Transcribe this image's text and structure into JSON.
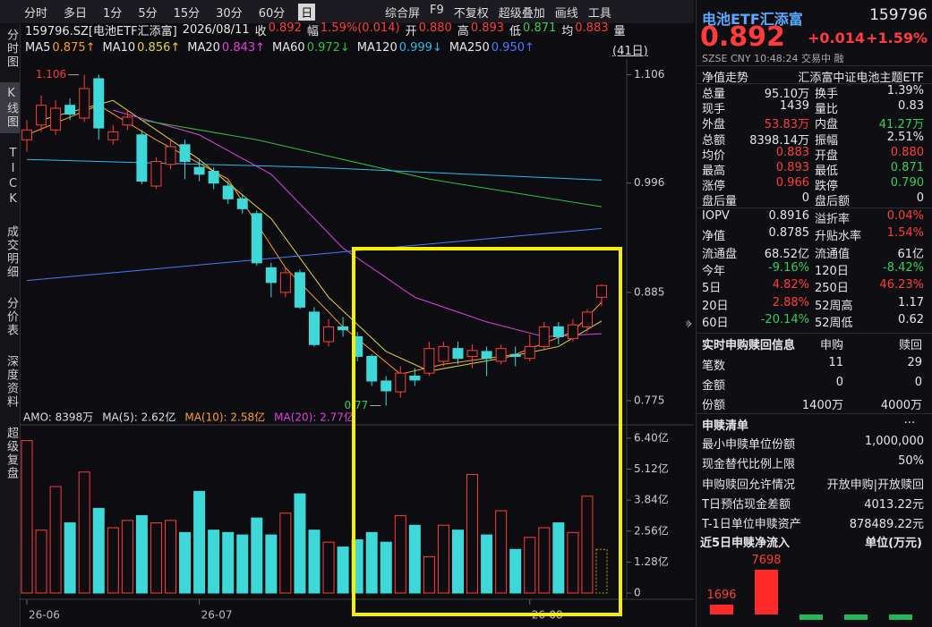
{
  "toolbar": {
    "tabs": [
      "分时",
      "多日",
      "1分",
      "5分",
      "15分",
      "30分",
      "60分",
      "日"
    ],
    "tools": [
      "综合屏",
      "F9",
      "不复权",
      "超级叠加",
      "画线",
      "工具"
    ]
  },
  "sidebar": [
    "分时图",
    "K线图",
    "TICK",
    "成交明细",
    "分价表",
    "深度资料",
    "超级复盘"
  ],
  "info": {
    "symbol": "159796.SZ[电池ETF汇添富]",
    "date": "2026/08/11",
    "quote": [
      {
        "label": "收",
        "value": "0.892",
        "tone": "u"
      },
      {
        "label": "幅",
        "value": "1.59%(0.014)",
        "tone": "u"
      },
      {
        "label": "开",
        "value": "0.880",
        "tone": "u"
      },
      {
        "label": "高",
        "value": "0.893",
        "tone": "u"
      },
      {
        "label": "低",
        "value": "0.871",
        "tone": "d"
      },
      {
        "label": "均",
        "value": "0.883",
        "tone": "u"
      },
      {
        "label": "量",
        "value": null,
        "tone": "n"
      }
    ]
  },
  "ma_bar": {
    "items": [
      {
        "name": "MA5",
        "value": "0.875↑",
        "color": "#ff9a2e"
      },
      {
        "name": "MA10",
        "value": "0.856↑",
        "color": "#e6d23c"
      },
      {
        "name": "MA20",
        "value": "0.843↑",
        "color": "#e040e0"
      },
      {
        "name": "MA60",
        "value": "0.972↓",
        "color": "#30c040"
      },
      {
        "name": "MA120",
        "value": "0.999↓",
        "color": "#30b8e8"
      },
      {
        "name": "MA250",
        "value": "0.950↑",
        "color": "#4a78ff"
      }
    ],
    "range": "(41日)"
  },
  "kline": {
    "up_color": "#ff3b3b",
    "down_color": "#3fd8d8",
    "current_bar_color": "#c8a000",
    "ylim": [
      0.755,
      1.122
    ],
    "yticks": [
      1.106,
      0.996,
      0.885,
      0.775
    ],
    "high_label": "1.106",
    "low_label": "0.77",
    "ohlc": [
      [
        1.04,
        1.06,
        1.028,
        1.05
      ],
      [
        1.055,
        1.085,
        1.048,
        1.075
      ],
      [
        1.05,
        1.08,
        1.045,
        1.072
      ],
      [
        1.075,
        1.082,
        1.06,
        1.066
      ],
      [
        1.062,
        1.106,
        1.058,
        1.092
      ],
      [
        1.102,
        1.106,
        1.04,
        1.052
      ],
      [
        1.04,
        1.055,
        1.035,
        1.048
      ],
      [
        1.055,
        1.07,
        1.05,
        1.063
      ],
      [
        1.045,
        1.05,
        0.995,
        0.998
      ],
      [
        0.993,
        1.022,
        0.99,
        1.018
      ],
      [
        1.015,
        1.04,
        1.01,
        1.033
      ],
      [
        1.035,
        1.04,
        1.0,
        1.018
      ],
      [
        1.012,
        1.02,
        0.998,
        1.005
      ],
      [
        1.008,
        1.012,
        0.99,
        0.996
      ],
      [
        0.993,
        0.998,
        0.975,
        0.98
      ],
      [
        0.98,
        0.985,
        0.965,
        0.97
      ],
      [
        0.965,
        0.968,
        0.912,
        0.915
      ],
      [
        0.91,
        0.915,
        0.88,
        0.895
      ],
      [
        0.885,
        0.91,
        0.88,
        0.905
      ],
      [
        0.905,
        0.908,
        0.868,
        0.87
      ],
      [
        0.865,
        0.87,
        0.83,
        0.832
      ],
      [
        0.835,
        0.858,
        0.83,
        0.85
      ],
      [
        0.85,
        0.86,
        0.84,
        0.847
      ],
      [
        0.84,
        0.845,
        0.815,
        0.82
      ],
      [
        0.82,
        0.822,
        0.79,
        0.795
      ],
      [
        0.795,
        0.8,
        0.77,
        0.785
      ],
      [
        0.784,
        0.81,
        0.778,
        0.803
      ],
      [
        0.8,
        0.808,
        0.79,
        0.796
      ],
      [
        0.803,
        0.835,
        0.8,
        0.828
      ],
      [
        0.815,
        0.835,
        0.81,
        0.83
      ],
      [
        0.828,
        0.835,
        0.812,
        0.818
      ],
      [
        0.82,
        0.832,
        0.808,
        0.826
      ],
      [
        0.825,
        0.83,
        0.8,
        0.818
      ],
      [
        0.815,
        0.832,
        0.812,
        0.828
      ],
      [
        0.822,
        0.83,
        0.81,
        0.82
      ],
      [
        0.818,
        0.842,
        0.815,
        0.83
      ],
      [
        0.83,
        0.855,
        0.826,
        0.85
      ],
      [
        0.85,
        0.855,
        0.832,
        0.84
      ],
      [
        0.838,
        0.858,
        0.835,
        0.852
      ],
      [
        0.85,
        0.868,
        0.845,
        0.865
      ],
      [
        0.88,
        0.893,
        0.871,
        0.892
      ]
    ],
    "ma_lines": [
      {
        "name": "MA5",
        "color": "#ff9a2e",
        "points": [
          [
            0,
            1.045
          ],
          [
            5,
            1.075
          ],
          [
            9,
            1.04
          ],
          [
            14,
            1.0
          ],
          [
            18,
            0.91
          ],
          [
            22,
            0.85
          ],
          [
            26,
            0.802
          ],
          [
            29,
            0.812
          ],
          [
            34,
            0.822
          ],
          [
            38,
            0.845
          ],
          [
            40,
            0.875
          ]
        ]
      },
      {
        "name": "MA10",
        "color": "#e6d23c",
        "points": [
          [
            1,
            1.06
          ],
          [
            6,
            1.08
          ],
          [
            12,
            1.02
          ],
          [
            17,
            0.96
          ],
          [
            21,
            0.88
          ],
          [
            25,
            0.825
          ],
          [
            28,
            0.805
          ],
          [
            33,
            0.818
          ],
          [
            37,
            0.83
          ],
          [
            40,
            0.856
          ]
        ]
      },
      {
        "name": "MA20",
        "color": "#e040e0",
        "points": [
          [
            6,
            1.07
          ],
          [
            12,
            1.045
          ],
          [
            17,
            1.005
          ],
          [
            22,
            0.93
          ],
          [
            27,
            0.88
          ],
          [
            32,
            0.855
          ],
          [
            36,
            0.84
          ],
          [
            40,
            0.843
          ]
        ]
      },
      {
        "name": "MA60",
        "color": "#30c040",
        "points": [
          [
            8,
            1.06
          ],
          [
            16,
            1.04
          ],
          [
            28,
            1.0
          ],
          [
            40,
            0.972
          ]
        ]
      },
      {
        "name": "MA120",
        "color": "#30b8e8",
        "points": [
          [
            0,
            1.02
          ],
          [
            20,
            1.012
          ],
          [
            40,
            0.999
          ]
        ]
      },
      {
        "name": "MA250",
        "color": "#4a78ff",
        "points": [
          [
            0,
            0.897
          ],
          [
            40,
            0.95
          ]
        ]
      }
    ],
    "volume": {
      "legend": [
        {
          "text": "AMO: 8398万",
          "color": "#dddddd"
        },
        {
          "text": "MA(5): 2.62亿",
          "color": "#dddddd"
        },
        {
          "text": "MA(10): 2.58亿",
          "color": "#ff9a2e"
        },
        {
          "text": "MA(20): 2.77亿",
          "color": "#e040e0"
        }
      ],
      "ylim": [
        0,
        6.95
      ],
      "yticks": [
        {
          "value": 6.4,
          "label": "6.40亿"
        },
        {
          "value": 5.12,
          "label": "5.12亿"
        },
        {
          "value": 3.84,
          "label": "3.84亿"
        },
        {
          "value": 2.56,
          "label": "2.56亿"
        },
        {
          "value": 1.28,
          "label": "1.28亿"
        },
        0
      ],
      "values": [
        6.3,
        2.6,
        4.4,
        2.9,
        5.0,
        3.5,
        2.7,
        3.0,
        3.2,
        2.9,
        3.0,
        2.5,
        4.2,
        2.6,
        2.5,
        2.4,
        3.1,
        2.4,
        3.3,
        4.1,
        2.6,
        2.1,
        1.9,
        2.2,
        2.5,
        2.1,
        3.2,
        2.8,
        1.5,
        2.8,
        2.6,
        4.9,
        2.4,
        3.4,
        1.8,
        2.3,
        2.7,
        2.9,
        2.5,
        4.0,
        1.8
      ]
    },
    "dates": [
      "26-06",
      null,
      null,
      null,
      null,
      null,
      null,
      null,
      null,
      null,
      null,
      null,
      "26-07",
      null,
      null,
      null,
      null,
      null,
      null,
      null,
      null,
      null,
      null,
      null,
      null,
      null,
      null,
      null,
      null,
      null,
      null,
      null,
      null,
      null,
      null,
      "26-08",
      null,
      null,
      null,
      null,
      null
    ]
  },
  "panel": {
    "name": "电池ETF汇添富",
    "code": "159796",
    "price": "0.892",
    "change": "+0.014",
    "pct": "+1.59%",
    "meta": "SZSE  CNY  10:48:24  交易中  融",
    "nav_label": "净值走势",
    "fund_name": "汇添富中证电池主题ETF",
    "rows1": [
      {
        "l1": "总量",
        "v1": "95.10万",
        "l2": "换手",
        "v2": "1.39%",
        "tones": [
          "n",
          "n"
        ]
      },
      {
        "l1": "现手",
        "v1": "1439",
        "l2": "量比",
        "v2": "0.83",
        "tones": [
          "n",
          "n"
        ]
      },
      {
        "l1": "外盘",
        "v1": "53.83万",
        "l2": "内盘",
        "v2": "41.27万",
        "tones": [
          "u",
          "d"
        ]
      },
      {
        "l1": "总额",
        "v1": "8398.14万",
        "l2": "振幅",
        "v2": "2.51%",
        "tones": [
          "n",
          "n"
        ]
      },
      {
        "l1": "均价",
        "v1": "0.883",
        "l2": "开盘",
        "v2": "0.880",
        "tones": [
          "u",
          "u"
        ]
      },
      {
        "l1": "最高",
        "v1": "0.893",
        "l2": "最低",
        "v2": "0.871",
        "tones": [
          "u",
          "d"
        ]
      },
      {
        "l1": "涨停",
        "v1": "0.966",
        "l2": "跌停",
        "v2": "0.790",
        "tones": [
          "u",
          "d"
        ]
      },
      {
        "l1": "盘后量",
        "v1": "0",
        "l2": "盘后额",
        "v2": "0",
        "tones": [
          "n",
          "n"
        ]
      }
    ],
    "rows2": [
      {
        "l1": "IOPV",
        "v1": "0.8916",
        "l2": "溢折率",
        "v2": "0.04%",
        "tones": [
          "n",
          "u"
        ]
      },
      {
        "l1": "净值",
        "v1": "0.8785",
        "l2": "升贴水率",
        "v2": "1.54%",
        "tones": [
          "n",
          "u"
        ]
      },
      {
        "l1": "流通盘",
        "v1": "68.52亿",
        "l2": "流通值",
        "v2": "61亿",
        "tones": [
          "n",
          "n"
        ]
      },
      {
        "l1": "今年",
        "v1": "-9.16%",
        "l2": "120日",
        "v2": "-8.42%",
        "tones": [
          "d",
          "d"
        ]
      },
      {
        "l1": "5日",
        "v1": "4.82%",
        "l2": "250日",
        "v2": "46.23%",
        "tones": [
          "u",
          "u"
        ]
      },
      {
        "l1": "20日",
        "v1": "2.88%",
        "l2": "52周高",
        "v2": "1.17",
        "tones": [
          "u",
          "n"
        ]
      },
      {
        "l1": "60日",
        "v1": "-20.14%",
        "l2": "52周低",
        "v2": "0.62",
        "tones": [
          "d",
          "n"
        ]
      }
    ],
    "subscription": {
      "title": "实时申购赎回信息",
      "cols": [
        "申购",
        "赎回"
      ],
      "rows": [
        [
          "笔数",
          "11",
          "29"
        ],
        [
          "金额",
          "0",
          "0"
        ],
        [
          "份额",
          "1400万",
          "4000万"
        ]
      ]
    },
    "list": {
      "title": "申赎清单",
      "more": "...",
      "rows": [
        [
          "最小申赎单位份额",
          "1,000,000"
        ],
        [
          "现金替代比例上限",
          "50%"
        ],
        [
          "申购赎回允许情况",
          "开放申购|开放赎回"
        ],
        [
          "T日预估现金差额",
          "4013.22元"
        ],
        [
          "T-1日单位申赎资产",
          "878489.22元"
        ]
      ]
    },
    "flow": {
      "title": "近5日申赎净流入",
      "unit": "单位(万元)",
      "values": [
        1696,
        7698,
        -900,
        -900,
        -900
      ],
      "value_labels": [
        "1696",
        "7698",
        null,
        null,
        null
      ],
      "ylim": [
        -1500,
        8500
      ],
      "up_color": "#ff2b2b",
      "down_color": "#1fb85a"
    }
  }
}
